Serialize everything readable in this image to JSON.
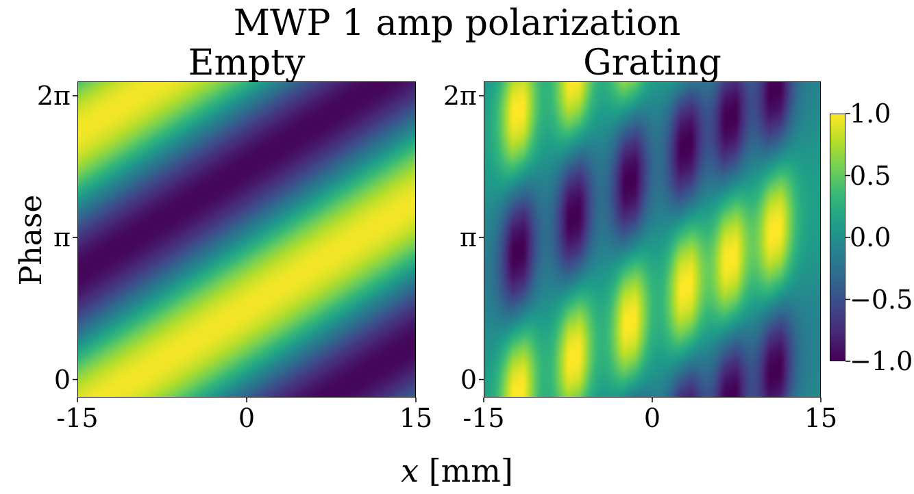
{
  "title": "MWP 1 amp polarization",
  "xlabel_var": "x",
  "xlabel_unit": "[mm]",
  "ylabel": "Phase",
  "colorbar": {
    "colormap": "viridis",
    "range": [
      -1.0,
      1.0
    ],
    "ticks": [
      {
        "value": 1.0,
        "label": "1.0"
      },
      {
        "value": 0.5,
        "label": "0.5"
      },
      {
        "value": 0.0,
        "label": "0.0"
      },
      {
        "value": -0.5,
        "label": "−0.5"
      },
      {
        "value": -1.0,
        "label": "−1.0"
      }
    ]
  },
  "chart_data": [
    {
      "type": "heatmap",
      "title": "Empty",
      "xlim": [
        -15,
        15
      ],
      "ylim": [
        -0.4,
        6.6
      ],
      "xticks": [
        {
          "value": -15,
          "label": "-15"
        },
        {
          "value": 0,
          "label": "0"
        },
        {
          "value": 15,
          "label": "15"
        }
      ],
      "yticks": [
        {
          "value": 0,
          "label": "0"
        },
        {
          "value": 3.1416,
          "label": "π"
        },
        {
          "value": 6.2832,
          "label": "2π"
        }
      ],
      "ylabel": "Phase",
      "zrange": [
        -1.0,
        1.0
      ],
      "pattern": "z = cos(phase - 2*pi*(x + 10)/40)"
    },
    {
      "type": "heatmap",
      "title": "Grating",
      "xlim": [
        -15,
        15
      ],
      "ylim": [
        -0.4,
        6.6
      ],
      "xticks": [
        {
          "value": -15,
          "label": "-15"
        },
        {
          "value": 0,
          "label": "0"
        },
        {
          "value": 15,
          "label": "15"
        }
      ],
      "yticks": [
        {
          "value": 0,
          "label": "0"
        },
        {
          "value": 3.1416,
          "label": "π"
        },
        {
          "value": 6.2832,
          "label": "2π"
        }
      ],
      "zrange": [
        -1.0,
        1.0
      ],
      "pattern": "z = A(x) * cos(phase - 2*pi*(x + 10)/40), A(x) = grating envelope with bright columns near x = -12, -7, -2, 3, 7, 11"
    }
  ]
}
